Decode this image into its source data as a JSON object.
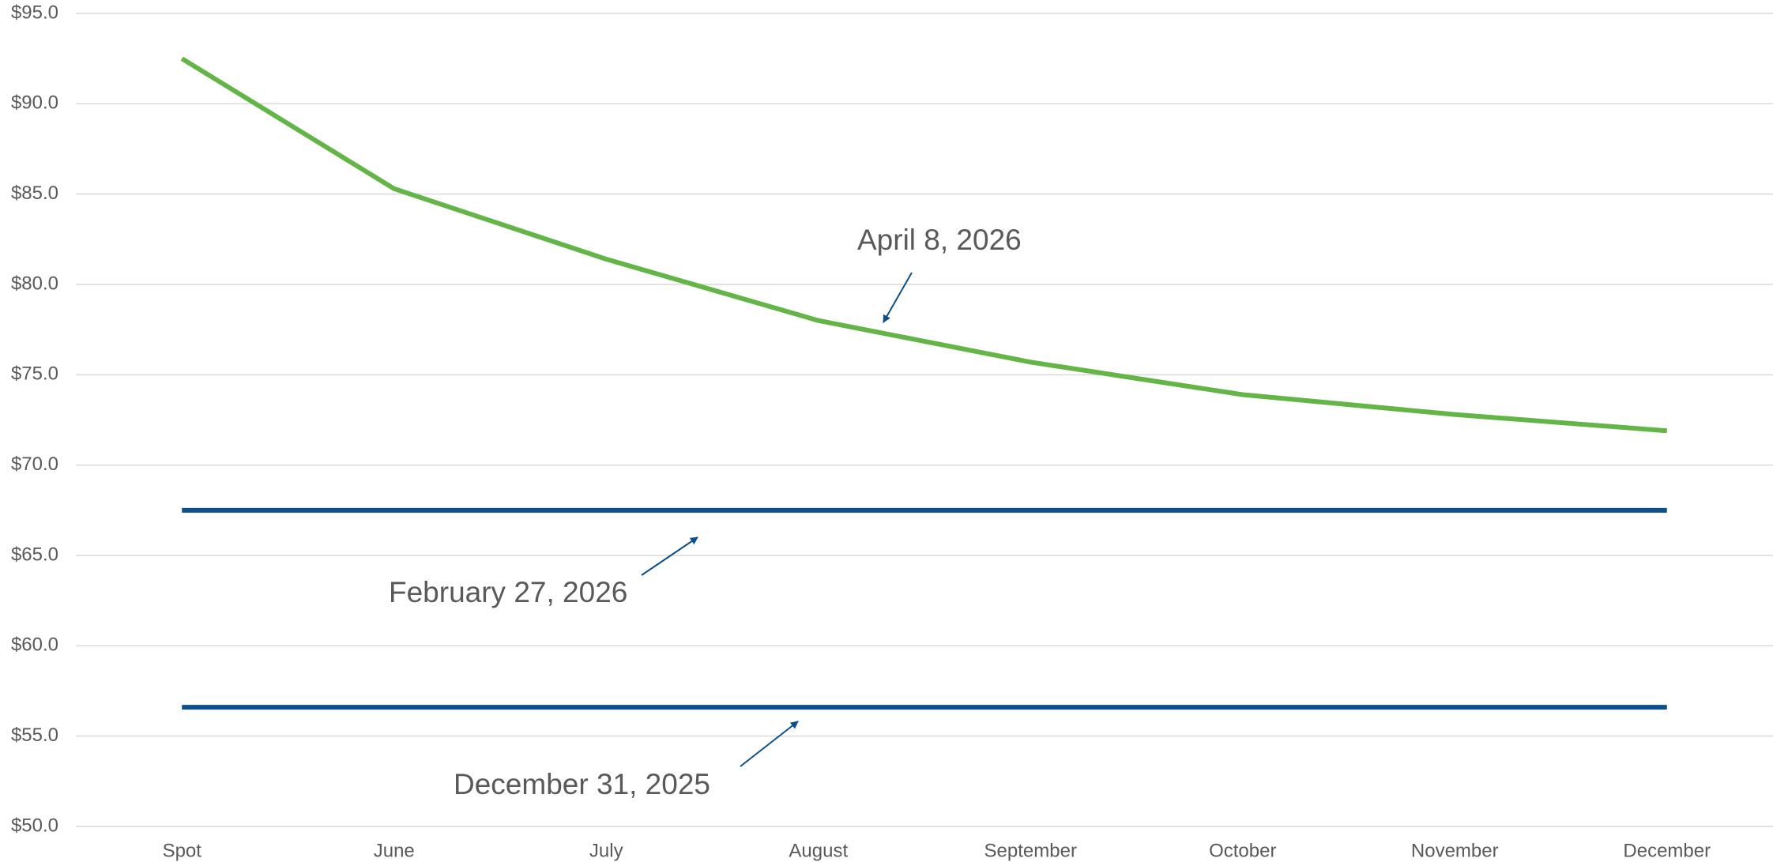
{
  "chart_data": {
    "type": "line",
    "categories": [
      "Spot",
      "June",
      "July",
      "August",
      "September",
      "October",
      "November",
      "December"
    ],
    "series": [
      {
        "name": "April 8, 2026",
        "color": "#62b546",
        "values": [
          92.5,
          85.3,
          81.4,
          78.0,
          75.7,
          73.9,
          72.8,
          71.9
        ]
      },
      {
        "name": "February 27, 2026",
        "color": "#0c4f8a",
        "values": [
          67.5,
          67.5,
          67.5,
          67.5,
          67.5,
          67.5,
          67.5,
          67.5
        ]
      },
      {
        "name": "December 31, 2025",
        "color": "#0c4f8a",
        "values": [
          56.6,
          56.6,
          56.6,
          56.6,
          56.6,
          56.6,
          56.6,
          56.6
        ]
      }
    ],
    "ylim": [
      50,
      95
    ],
    "yticks": [
      {
        "value": 50,
        "label": "$50.0"
      },
      {
        "value": 55,
        "label": "$55.0"
      },
      {
        "value": 60,
        "label": "$60.0"
      },
      {
        "value": 65,
        "label": "$65.0"
      },
      {
        "value": 70,
        "label": "$70.0"
      },
      {
        "value": 75,
        "label": "$75.0"
      },
      {
        "value": 80,
        "label": "$80.0"
      },
      {
        "value": 85,
        "label": "$85.0"
      },
      {
        "value": 90,
        "label": "$90.0"
      },
      {
        "value": 95,
        "label": "$95.0"
      }
    ],
    "grid": true
  }
}
